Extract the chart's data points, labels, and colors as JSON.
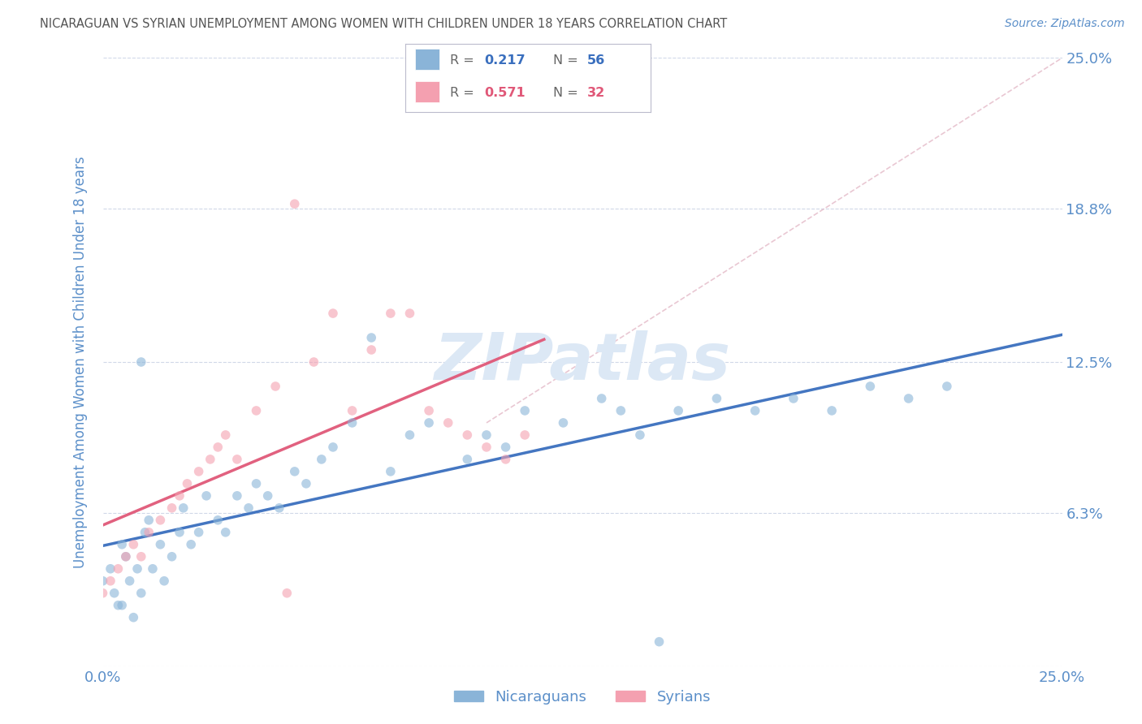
{
  "title": "NICARAGUAN VS SYRIAN UNEMPLOYMENT AMONG WOMEN WITH CHILDREN UNDER 18 YEARS CORRELATION CHART",
  "source": "Source: ZipAtlas.com",
  "ylabel": "Unemployment Among Women with Children Under 18 years",
  "xlim": [
    0.0,
    25.0
  ],
  "ylim": [
    0.0,
    25.0
  ],
  "blue_color": "#8ab4d8",
  "pink_color": "#f4a0b0",
  "blue_line_color": "#3a6fbe",
  "pink_line_color": "#e05878",
  "ref_line_color": "#e0b0c0",
  "watermark_color": "#dce8f5",
  "background_color": "#ffffff",
  "grid_color": "#d0d8e8",
  "title_color": "#555555",
  "tick_label_color": "#5b8fc9",
  "axis_label_color": "#5b8fc9",
  "nicaraguan_x": [
    0.0,
    0.2,
    0.3,
    0.4,
    0.5,
    0.6,
    0.7,
    0.8,
    0.9,
    1.0,
    1.1,
    1.2,
    1.3,
    1.5,
    1.6,
    1.8,
    2.0,
    2.1,
    2.3,
    2.5,
    2.7,
    3.0,
    3.2,
    3.5,
    3.8,
    4.0,
    4.3,
    4.6,
    5.0,
    5.3,
    5.7,
    6.0,
    6.5,
    7.0,
    7.5,
    8.0,
    8.5,
    9.5,
    10.0,
    10.5,
    11.0,
    12.0,
    13.0,
    13.5,
    14.0,
    15.0,
    16.0,
    17.0,
    18.0,
    19.0,
    20.0,
    21.0,
    22.0,
    14.5,
    0.5,
    1.0
  ],
  "nicaraguan_y": [
    3.5,
    4.0,
    3.0,
    2.5,
    5.0,
    4.5,
    3.5,
    2.0,
    4.0,
    3.0,
    5.5,
    6.0,
    4.0,
    5.0,
    3.5,
    4.5,
    5.5,
    6.5,
    5.0,
    5.5,
    7.0,
    6.0,
    5.5,
    7.0,
    6.5,
    7.5,
    7.0,
    6.5,
    8.0,
    7.5,
    8.5,
    9.0,
    10.0,
    13.5,
    8.0,
    9.5,
    10.0,
    8.5,
    9.5,
    9.0,
    10.5,
    10.0,
    11.0,
    10.5,
    9.5,
    10.5,
    11.0,
    10.5,
    11.0,
    10.5,
    11.5,
    11.0,
    11.5,
    1.0,
    2.5,
    12.5
  ],
  "syrian_x": [
    0.0,
    0.2,
    0.4,
    0.6,
    0.8,
    1.0,
    1.2,
    1.5,
    1.8,
    2.0,
    2.2,
    2.5,
    3.0,
    3.5,
    4.0,
    4.5,
    5.0,
    5.5,
    6.0,
    6.5,
    7.0,
    7.5,
    8.0,
    8.5,
    9.0,
    9.5,
    10.0,
    10.5,
    11.0,
    4.8,
    2.8,
    3.2
  ],
  "syrian_y": [
    3.0,
    3.5,
    4.0,
    4.5,
    5.0,
    4.5,
    5.5,
    6.0,
    6.5,
    7.0,
    7.5,
    8.0,
    9.0,
    8.5,
    10.5,
    11.5,
    19.0,
    12.5,
    14.5,
    10.5,
    13.0,
    14.5,
    14.5,
    10.5,
    10.0,
    9.5,
    9.0,
    8.5,
    9.5,
    3.0,
    8.5,
    9.5
  ],
  "blue_trend": [
    3.5,
    11.0
  ],
  "pink_trend": [
    1.5,
    15.5
  ],
  "pink_trend_x": [
    0.0,
    11.0
  ]
}
